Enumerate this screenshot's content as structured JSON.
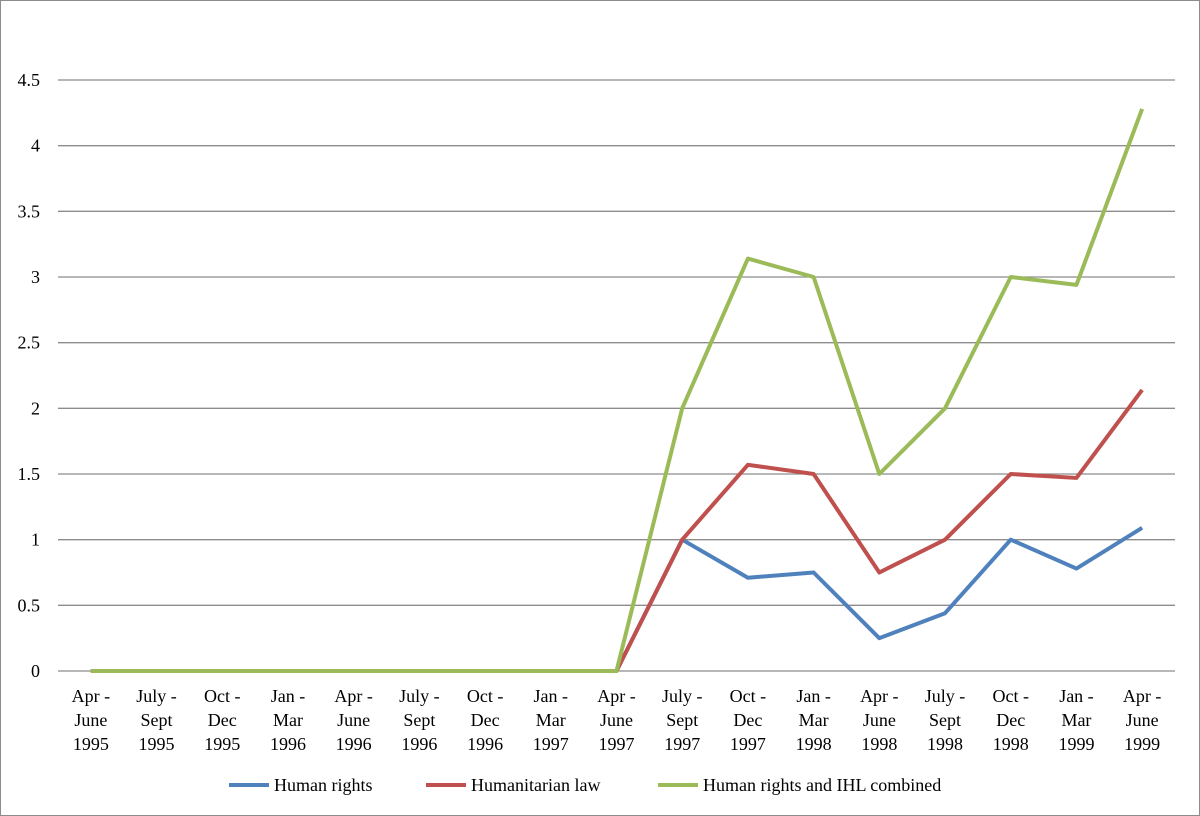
{
  "chart_data": {
    "type": "line",
    "title": "",
    "xlabel": "",
    "ylabel": "",
    "ylim": [
      0,
      4.5
    ],
    "yticks": [
      "0",
      "0.5",
      "1",
      "1.5",
      "2",
      "2.5",
      "3",
      "3.5",
      "4",
      "4.5"
    ],
    "grid": true,
    "legend_position": "bottom",
    "categories": [
      [
        "Apr -",
        "June",
        "1995"
      ],
      [
        "July -",
        "Sept",
        "1995"
      ],
      [
        "Oct -",
        "Dec",
        "1995"
      ],
      [
        "Jan -",
        "Mar",
        "1996"
      ],
      [
        "Apr -",
        "June",
        "1996"
      ],
      [
        "July -",
        "Sept",
        "1996"
      ],
      [
        "Oct -",
        "Dec",
        "1996"
      ],
      [
        "Jan -",
        "Mar",
        "1997"
      ],
      [
        "Apr -",
        "June",
        "1997"
      ],
      [
        "July -",
        "Sept",
        "1997"
      ],
      [
        "Oct -",
        "Dec",
        "1997"
      ],
      [
        "Jan -",
        "Mar",
        "1998"
      ],
      [
        "Apr -",
        "June",
        "1998"
      ],
      [
        "July -",
        "Sept",
        "1998"
      ],
      [
        "Oct -",
        "Dec",
        "1998"
      ],
      [
        "Jan -",
        "Mar",
        "1999"
      ],
      [
        "Apr -",
        "June",
        "1999"
      ]
    ],
    "series": [
      {
        "name": "Human rights",
        "color": "#4f81bd",
        "values": [
          0,
          0,
          0,
          0,
          0,
          0,
          0,
          0,
          0,
          1.0,
          0.71,
          0.75,
          0.25,
          0.44,
          1.0,
          0.78,
          1.09
        ]
      },
      {
        "name": "Humanitarian law",
        "color": "#c0504d",
        "values": [
          0,
          0,
          0,
          0,
          0,
          0,
          0,
          0,
          0,
          1.0,
          1.57,
          1.5,
          0.75,
          1.0,
          1.5,
          1.47,
          2.14
        ]
      },
      {
        "name": "Human rights and IHL combined",
        "color": "#9bbb59",
        "values": [
          0,
          0,
          0,
          0,
          0,
          0,
          0,
          0,
          0,
          2.0,
          3.14,
          3.0,
          1.5,
          2.0,
          3.0,
          2.94,
          4.28
        ]
      }
    ]
  }
}
